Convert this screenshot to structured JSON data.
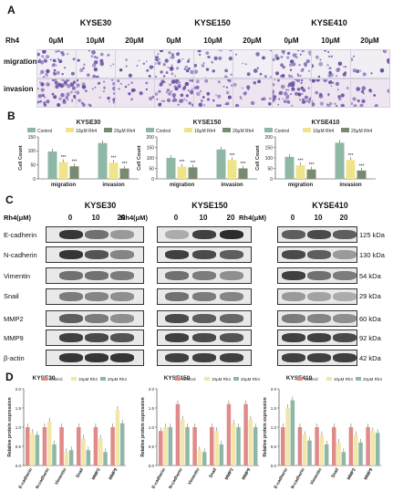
{
  "panels": {
    "a": "A",
    "b": "B",
    "c": "C",
    "d": "D"
  },
  "panelA": {
    "rh4_label": "Rh4",
    "cell_lines": [
      "KYSE30",
      "KYSE150",
      "KYSE410"
    ],
    "doses": [
      "0μM",
      "10μM",
      "20μM"
    ],
    "rows": [
      "migration",
      "invasion"
    ]
  },
  "panelC": {
    "headers": [
      "KYSE30",
      "KYSE150",
      "KYSE410"
    ],
    "rh4_labels": [
      "Rh4(μM)",
      "Rh4(μM)",
      "Rh4(μM)"
    ],
    "doses": [
      "0",
      "10",
      "20"
    ],
    "proteins": [
      "E-cadherin",
      "N-cadherin",
      "Vimentin",
      "Snail",
      "MMP2",
      "MMP9",
      "β-actin"
    ],
    "kda": [
      "125 kDa",
      "130 kDa",
      "54 kDa",
      "29 kDa",
      "60 kDa",
      "92 kDa",
      "42 kDa"
    ]
  },
  "colors": {
    "control": "#8fb7a5",
    "rh4_10": "#f0e48a",
    "rh4_20": "#7a8a70",
    "d_control": "#e08a8a",
    "d_rh4_10": "#f2e6a8",
    "d_rh4_20": "#8fb7a5",
    "stain": "#6b4fa8"
  },
  "chart_data": [
    {
      "type": "bar",
      "panel": "B",
      "title": "KYSE30",
      "ylabel": "Cell Count",
      "xlabel": "",
      "ylim": [
        0,
        150
      ],
      "yticks": [
        0,
        50,
        100,
        150
      ],
      "categories": [
        "migration",
        "invasion"
      ],
      "series": [
        {
          "name": "Control",
          "values": [
            98,
            128
          ]
        },
        {
          "name": "10μM Rh4",
          "values": [
            60,
            58
          ]
        },
        {
          "name": "20μM Rh4",
          "values": [
            45,
            37
          ]
        }
      ],
      "annotations": [
        "***",
        "***",
        "***",
        "***"
      ]
    },
    {
      "type": "bar",
      "panel": "B",
      "title": "KYSE150",
      "ylabel": "Cell Count",
      "xlabel": "",
      "ylim": [
        0,
        200
      ],
      "yticks": [
        0,
        50,
        100,
        150,
        200
      ],
      "categories": [
        "migration",
        "invasion"
      ],
      "series": [
        {
          "name": "Control",
          "values": [
            100,
            140
          ]
        },
        {
          "name": "10μM Rh4",
          "values": [
            58,
            90
          ]
        },
        {
          "name": "20μM Rh4",
          "values": [
            55,
            50
          ]
        }
      ],
      "annotations": [
        "***",
        "***",
        "***",
        "***"
      ]
    },
    {
      "type": "bar",
      "panel": "B",
      "title": "KYSE410",
      "ylabel": "Cell Count",
      "xlabel": "",
      "ylim": [
        0,
        200
      ],
      "yticks": [
        0,
        50,
        100,
        150,
        200
      ],
      "categories": [
        "migration",
        "invasion"
      ],
      "series": [
        {
          "name": "Control",
          "values": [
            105,
            172
          ]
        },
        {
          "name": "10μM Rh4",
          "values": [
            65,
            90
          ]
        },
        {
          "name": "20μM Rh4",
          "values": [
            45,
            40
          ]
        }
      ],
      "annotations": [
        "***",
        "***",
        "***",
        "***"
      ]
    },
    {
      "type": "bar",
      "panel": "D",
      "title": "KYSE30",
      "ylabel": "Relative protein expression",
      "xlabel": "",
      "ylim": [
        0,
        2.0
      ],
      "yticks": [
        0.0,
        0.5,
        1.0,
        1.5,
        2.0
      ],
      "categories": [
        "E-cadherin",
        "N-cadherin",
        "Vimentin",
        "Snail",
        "MMP2",
        "MMP9"
      ],
      "series": [
        {
          "name": "Control",
          "values": [
            1.0,
            1.0,
            1.0,
            1.0,
            1.0,
            1.0
          ]
        },
        {
          "name": "10μM Rh4",
          "values": [
            0.85,
            1.15,
            0.35,
            0.7,
            0.7,
            1.45
          ]
        },
        {
          "name": "20μM Rh4",
          "values": [
            0.8,
            0.55,
            0.4,
            0.4,
            0.35,
            1.1
          ]
        }
      ]
    },
    {
      "type": "bar",
      "panel": "D",
      "title": "KYSE150",
      "ylabel": "Relative protein expression",
      "xlabel": "",
      "ylim": [
        0,
        2.0
      ],
      "yticks": [
        0.0,
        0.5,
        1.0,
        1.5,
        2.0
      ],
      "categories": [
        "E-cadherin",
        "N-cadherin",
        "Vimentin",
        "Snail",
        "MMP2",
        "MMP9"
      ],
      "series": [
        {
          "name": "Control",
          "values": [
            0.9,
            1.6,
            1.0,
            1.0,
            1.6,
            1.6
          ]
        },
        {
          "name": "10μM Rh4",
          "values": [
            1.0,
            1.2,
            0.4,
            0.9,
            1.1,
            1.2
          ]
        },
        {
          "name": "20μM Rh4",
          "values": [
            1.0,
            1.0,
            0.35,
            0.55,
            1.0,
            1.0
          ]
        }
      ]
    },
    {
      "type": "bar",
      "panel": "D",
      "title": "KYSE410",
      "ylabel": "Relative protein expression",
      "xlabel": "",
      "ylim": [
        0,
        2.0
      ],
      "yticks": [
        0.0,
        0.5,
        1.0,
        1.5,
        2.0
      ],
      "categories": [
        "E-cadherin",
        "N-cadherin",
        "Vimentin",
        "Snail",
        "MMP2",
        "MMP9"
      ],
      "series": [
        {
          "name": "Control",
          "values": [
            1.0,
            1.0,
            1.0,
            1.0,
            1.0,
            1.0
          ]
        },
        {
          "name": "10μM Rh4",
          "values": [
            1.5,
            0.8,
            0.8,
            0.6,
            0.8,
            0.9
          ]
        },
        {
          "name": "20μM Rh4",
          "values": [
            1.7,
            0.65,
            0.55,
            0.35,
            0.6,
            0.85
          ]
        }
      ]
    }
  ]
}
